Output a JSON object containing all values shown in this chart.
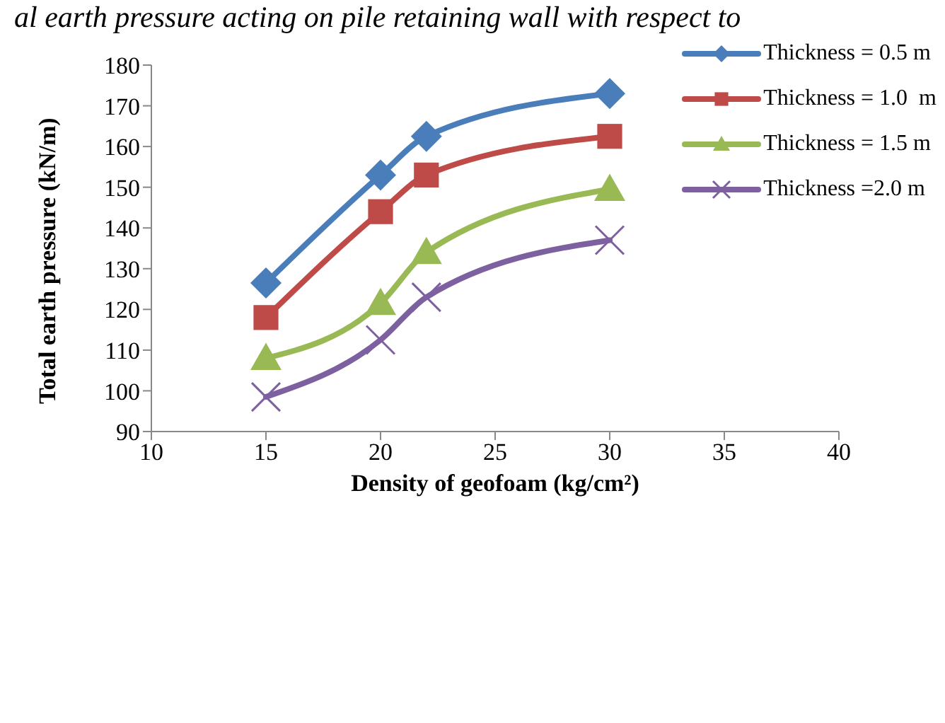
{
  "chart_data": {
    "type": "line",
    "title": "al earth pressure acting on pile retaining wall with respect to",
    "xlabel": "Density of geofoam (kg/cm²)",
    "ylabel": "Total earth pressure (kN/m)",
    "x": [
      15,
      20,
      22,
      30
    ],
    "xlim": [
      10,
      40
    ],
    "xticks": [
      10,
      15,
      20,
      25,
      30,
      35,
      40
    ],
    "ylim": [
      90,
      180
    ],
    "yticks": [
      90,
      100,
      110,
      120,
      130,
      140,
      150,
      160,
      170,
      180
    ],
    "grid": false,
    "legend": "top right",
    "line_style": "solid",
    "series": [
      {
        "name": "Thickness = 0.5 m",
        "color": "#4a7ebb",
        "marker": "diamond",
        "values": [
          126.5,
          153,
          162.5,
          173
        ]
      },
      {
        "name": "Thickness = 1.0  m",
        "color": "#be4b48",
        "marker": "square",
        "values": [
          118,
          144,
          153,
          162.5
        ]
      },
      {
        "name": "Thickness = 1.5 m",
        "color": "#98b954",
        "marker": "triangle",
        "values": [
          108,
          121.5,
          134,
          149.5
        ]
      },
      {
        "name": "Thickness =2.0 m",
        "color": "#7d60a0",
        "marker": "cross",
        "values": [
          98.5,
          112.5,
          123,
          137
        ]
      }
    ]
  }
}
